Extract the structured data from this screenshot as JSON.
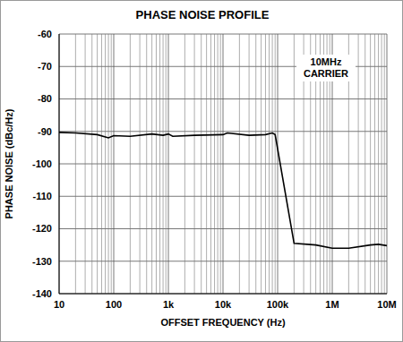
{
  "chart_data": {
    "type": "line",
    "title": "PHASE NOISE PROFILE",
    "x_label": "OFFSET FREQUENCY (Hz)",
    "y_label": "PHASE NOISE (dBc/Hz)",
    "annotations": [
      "10MHz",
      "CARRIER"
    ],
    "x": [
      10,
      20,
      50,
      80,
      100,
      200,
      500,
      800,
      1000,
      1200,
      3000,
      10000,
      12000,
      30000,
      60000,
      80000,
      90000,
      200000,
      500000,
      1000000,
      2000000,
      5000000,
      7000000,
      10000000
    ],
    "values": [
      -90.3,
      -90.5,
      -91,
      -92,
      -91.3,
      -91.5,
      -90.8,
      -91.2,
      -90.8,
      -91.5,
      -91.2,
      -91,
      -90.5,
      -91.2,
      -91,
      -90.5,
      -91,
      -124.5,
      -125,
      -126,
      -126,
      -125,
      -124.8,
      -125.2
    ],
    "color": "#000000",
    "log": "x",
    "grid": true,
    "xlim": [
      10,
      10000000
    ],
    "xticks": [
      10,
      100,
      {
        "value": 1000,
        "label": "1k"
      },
      {
        "value": 10000,
        "label": "10k"
      },
      {
        "value": 100000,
        "label": "100k"
      },
      {
        "value": 1000000,
        "label": "1M"
      },
      {
        "value": 10000000,
        "label": "10M"
      }
    ],
    "ylim": [
      -140,
      -60
    ],
    "yticks": [
      -140,
      -130,
      -120,
      -110,
      -100,
      -90,
      -80,
      -70,
      -60
    ]
  }
}
